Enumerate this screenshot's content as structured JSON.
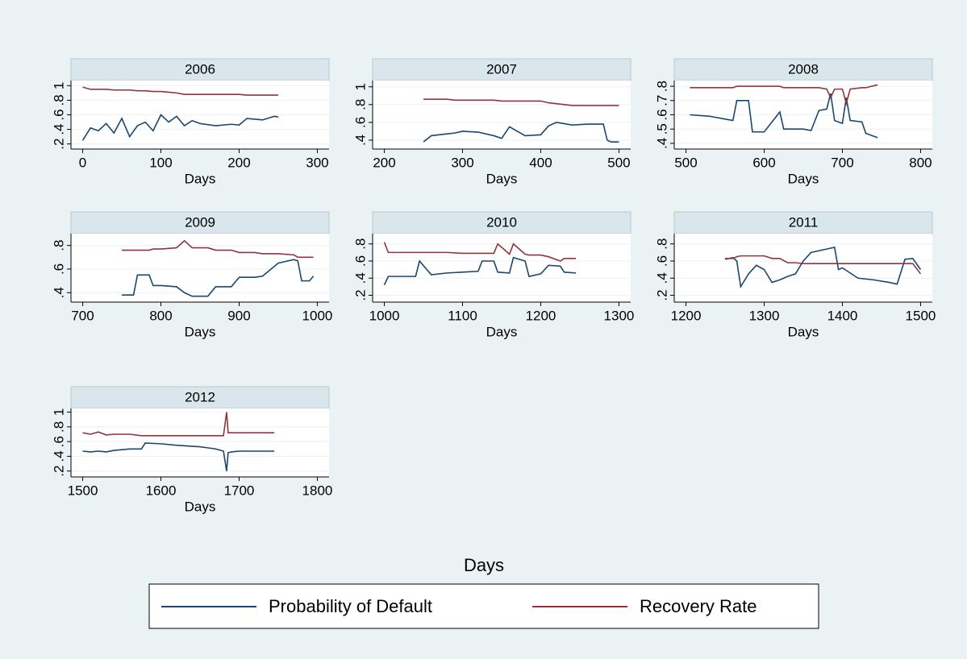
{
  "chart_data": [
    {
      "type": "line",
      "title": "2006",
      "xlabel": "Days",
      "xlim": [
        -15,
        315
      ],
      "xticks": [
        0,
        100,
        200,
        300
      ],
      "ylim": [
        0.13,
        1.07
      ],
      "yticks": [
        {
          "value": 0.2,
          "label": ".2"
        },
        {
          "value": 0.4,
          "label": ".4"
        },
        {
          "value": 0.6,
          "label": ".6"
        },
        {
          "value": 0.8,
          "label": ".8"
        },
        1
      ],
      "x": [
        0,
        10,
        20,
        30,
        40,
        50,
        60,
        70,
        80,
        90,
        100,
        110,
        120,
        130,
        140,
        150,
        170,
        190,
        200,
        210,
        230,
        245,
        250
      ],
      "series": [
        {
          "values": [
            0.25,
            0.42,
            0.38,
            0.48,
            0.35,
            0.55,
            0.3,
            0.45,
            0.5,
            0.38,
            0.6,
            0.5,
            0.58,
            0.45,
            0.52,
            0.48,
            0.45,
            0.47,
            0.46,
            0.55,
            0.53,
            0.58,
            0.57
          ]
        },
        {
          "values": [
            0.98,
            0.95,
            0.95,
            0.95,
            0.94,
            0.94,
            0.94,
            0.93,
            0.93,
            0.92,
            0.92,
            0.91,
            0.9,
            0.88,
            0.88,
            0.88,
            0.88,
            0.88,
            0.88,
            0.87,
            0.87,
            0.87,
            0.87
          ]
        }
      ]
    },
    {
      "type": "line",
      "title": "2007",
      "xlabel": "Days",
      "xlim": [
        185,
        515
      ],
      "xticks": [
        200,
        300,
        400,
        500
      ],
      "ylim": [
        0.3,
        1.07
      ],
      "yticks": [
        {
          "value": 0.4,
          "label": ".4"
        },
        {
          "value": 0.6,
          "label": ".6"
        },
        {
          "value": 0.8,
          "label": ".8"
        },
        1
      ],
      "x": [
        250,
        260,
        280,
        290,
        300,
        320,
        340,
        350,
        360,
        380,
        400,
        410,
        420,
        440,
        460,
        480,
        485,
        490,
        500
      ],
      "series": [
        {
          "values": [
            0.38,
            0.45,
            0.47,
            0.48,
            0.5,
            0.49,
            0.45,
            0.42,
            0.55,
            0.45,
            0.46,
            0.56,
            0.6,
            0.57,
            0.58,
            0.58,
            0.4,
            0.38,
            0.38
          ]
        },
        {
          "values": [
            0.86,
            0.86,
            0.86,
            0.85,
            0.85,
            0.85,
            0.85,
            0.84,
            0.84,
            0.84,
            0.84,
            0.82,
            0.81,
            0.79,
            0.79,
            0.79,
            0.79,
            0.79,
            0.79
          ]
        }
      ]
    },
    {
      "type": "line",
      "title": "2008",
      "xlabel": "Days",
      "xlim": [
        485,
        815
      ],
      "xticks": [
        500,
        600,
        700,
        800
      ],
      "ylim": [
        0.36,
        0.84
      ],
      "yticks": [
        {
          "value": 0.4,
          "label": ".4"
        },
        {
          "value": 0.5,
          "label": ".5"
        },
        {
          "value": 0.6,
          "label": ".6"
        },
        {
          "value": 0.7,
          "label": ".7"
        },
        {
          "value": 0.8,
          "label": ".8"
        }
      ],
      "x": [
        505,
        530,
        550,
        560,
        565,
        580,
        585,
        600,
        620,
        625,
        650,
        660,
        670,
        680,
        685,
        690,
        700,
        705,
        710,
        725,
        730,
        745
      ],
      "series": [
        {
          "values": [
            0.6,
            0.59,
            0.57,
            0.56,
            0.7,
            0.7,
            0.48,
            0.48,
            0.62,
            0.5,
            0.5,
            0.49,
            0.63,
            0.64,
            0.75,
            0.56,
            0.54,
            0.72,
            0.56,
            0.55,
            0.47,
            0.44
          ]
        },
        {
          "values": [
            0.79,
            0.79,
            0.79,
            0.79,
            0.8,
            0.8,
            0.8,
            0.8,
            0.8,
            0.79,
            0.79,
            0.79,
            0.79,
            0.78,
            0.72,
            0.78,
            0.78,
            0.68,
            0.78,
            0.79,
            0.79,
            0.81
          ]
        }
      ]
    },
    {
      "type": "line",
      "title": "2009",
      "xlabel": "Days",
      "xlim": [
        685,
        1015
      ],
      "xticks": [
        700,
        800,
        900,
        1000
      ],
      "ylim": [
        0.32,
        0.9
      ],
      "yticks": [
        {
          "value": 0.4,
          "label": ".4"
        },
        {
          "value": 0.6,
          "label": ".6"
        },
        {
          "value": 0.8,
          "label": ".8"
        }
      ],
      "x": [
        750,
        765,
        770,
        785,
        790,
        800,
        820,
        830,
        840,
        860,
        870,
        890,
        900,
        920,
        930,
        950,
        970,
        975,
        980,
        990,
        995
      ],
      "series": [
        {
          "values": [
            0.38,
            0.38,
            0.55,
            0.55,
            0.46,
            0.46,
            0.45,
            0.4,
            0.37,
            0.37,
            0.45,
            0.45,
            0.53,
            0.53,
            0.54,
            0.65,
            0.68,
            0.67,
            0.5,
            0.5,
            0.54
          ]
        },
        {
          "values": [
            0.76,
            0.76,
            0.76,
            0.76,
            0.77,
            0.77,
            0.78,
            0.84,
            0.78,
            0.78,
            0.76,
            0.76,
            0.74,
            0.74,
            0.73,
            0.73,
            0.72,
            0.7,
            0.7,
            0.7,
            0.7
          ]
        }
      ]
    },
    {
      "type": "line",
      "title": "2010",
      "xlabel": "Days",
      "xlim": [
        985,
        1315
      ],
      "xticks": [
        1000,
        1100,
        1200,
        1300
      ],
      "ylim": [
        0.12,
        0.92
      ],
      "yticks": [
        {
          "value": 0.2,
          "label": ".2"
        },
        {
          "value": 0.4,
          "label": ".4"
        },
        {
          "value": 0.6,
          "label": ".6"
        },
        {
          "value": 0.8,
          "label": ".8"
        }
      ],
      "x": [
        1000,
        1005,
        1040,
        1045,
        1060,
        1080,
        1100,
        1120,
        1125,
        1140,
        1145,
        1160,
        1165,
        1180,
        1185,
        1200,
        1210,
        1225,
        1230,
        1245
      ],
      "series": [
        {
          "values": [
            0.32,
            0.42,
            0.42,
            0.6,
            0.44,
            0.46,
            0.47,
            0.48,
            0.6,
            0.6,
            0.47,
            0.46,
            0.64,
            0.6,
            0.42,
            0.45,
            0.55,
            0.54,
            0.47,
            0.46
          ]
        },
        {
          "values": [
            0.82,
            0.7,
            0.7,
            0.7,
            0.7,
            0.7,
            0.69,
            0.69,
            0.69,
            0.69,
            0.8,
            0.68,
            0.8,
            0.68,
            0.67,
            0.67,
            0.65,
            0.6,
            0.63,
            0.63
          ]
        }
      ]
    },
    {
      "type": "line",
      "title": "2011",
      "xlabel": "Days",
      "xlim": [
        1185,
        1515
      ],
      "xticks": [
        1200,
        1300,
        1400,
        1500
      ],
      "ylim": [
        0.12,
        0.92
      ],
      "yticks": [
        {
          "value": 0.2,
          "label": ".2"
        },
        {
          "value": 0.4,
          "label": ".4"
        },
        {
          "value": 0.6,
          "label": ".6"
        },
        {
          "value": 0.8,
          "label": ".8"
        }
      ],
      "x": [
        1250,
        1260,
        1265,
        1270,
        1280,
        1290,
        1300,
        1310,
        1320,
        1330,
        1340,
        1350,
        1360,
        1370,
        1380,
        1390,
        1395,
        1400,
        1420,
        1440,
        1460,
        1470,
        1480,
        1490,
        1500
      ],
      "series": [
        {
          "values": [
            0.62,
            0.64,
            0.6,
            0.3,
            0.45,
            0.55,
            0.5,
            0.35,
            0.38,
            0.42,
            0.45,
            0.6,
            0.7,
            0.72,
            0.74,
            0.76,
            0.5,
            0.52,
            0.4,
            0.38,
            0.35,
            0.33,
            0.62,
            0.63,
            0.5
          ]
        },
        {
          "values": [
            0.63,
            0.63,
            0.65,
            0.66,
            0.66,
            0.66,
            0.66,
            0.63,
            0.63,
            0.58,
            0.58,
            0.57,
            0.57,
            0.57,
            0.57,
            0.57,
            0.57,
            0.57,
            0.57,
            0.57,
            0.57,
            0.57,
            0.57,
            0.57,
            0.45
          ]
        }
      ]
    },
    {
      "type": "line",
      "title": "2012",
      "xlabel": "Days",
      "xlim": [
        1485,
        1815
      ],
      "xticks": [
        1500,
        1600,
        1700,
        1800
      ],
      "ylim": [
        0.12,
        1.05
      ],
      "yticks": [
        {
          "value": 0.2,
          "label": ".2"
        },
        {
          "value": 0.4,
          "label": ".4"
        },
        {
          "value": 0.6,
          "label": ".6"
        },
        {
          "value": 0.8,
          "label": ".8"
        },
        1
      ],
      "x": [
        1500,
        1510,
        1520,
        1530,
        1540,
        1560,
        1575,
        1580,
        1600,
        1620,
        1650,
        1670,
        1680,
        1684,
        1686,
        1690,
        1700,
        1720,
        1745
      ],
      "series": [
        {
          "values": [
            0.47,
            0.46,
            0.47,
            0.46,
            0.48,
            0.5,
            0.5,
            0.58,
            0.57,
            0.55,
            0.53,
            0.5,
            0.47,
            0.2,
            0.45,
            0.46,
            0.47,
            0.47,
            0.47
          ]
        },
        {
          "values": [
            0.72,
            0.7,
            0.73,
            0.69,
            0.7,
            0.7,
            0.68,
            0.68,
            0.68,
            0.68,
            0.68,
            0.68,
            0.68,
            1.0,
            0.72,
            0.72,
            0.72,
            0.72,
            0.72
          ]
        }
      ]
    }
  ],
  "xlabel": "Days",
  "legend": {
    "items": [
      {
        "name": "Probability of Default",
        "color": "#1a476f"
      },
      {
        "name": "Recovery Rate",
        "color": "#90353b"
      }
    ]
  }
}
